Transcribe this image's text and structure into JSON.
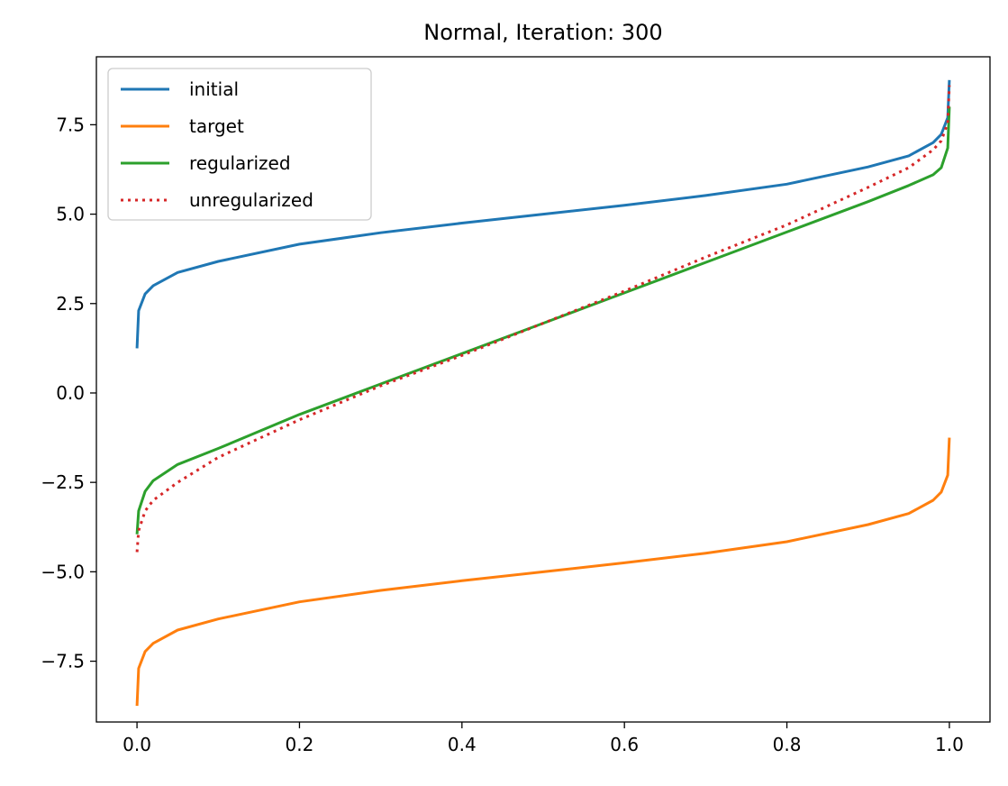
{
  "chart_data": {
    "type": "line",
    "title": "Normal, Iteration: 300",
    "xlabel": "",
    "ylabel": "",
    "xlim": [
      -0.05,
      1.05
    ],
    "ylim": [
      -9.2,
      9.4
    ],
    "grid": false,
    "legend_position": "top-left",
    "x_ticks": [
      0.0,
      0.2,
      0.4,
      0.6,
      0.8,
      1.0
    ],
    "x_tick_labels": [
      "0.0",
      "0.2",
      "0.4",
      "0.6",
      "0.8",
      "1.0"
    ],
    "y_ticks": [
      -7.5,
      -5.0,
      -2.5,
      0.0,
      2.5,
      5.0,
      7.5
    ],
    "y_tick_labels": [
      "−7.5",
      "−5.0",
      "−2.5",
      "0.0",
      "2.5",
      "5.0",
      "7.5"
    ],
    "x": [
      0.0,
      0.002,
      0.01,
      0.02,
      0.05,
      0.1,
      0.2,
      0.3,
      0.4,
      0.5,
      0.6,
      0.7,
      0.8,
      0.9,
      0.95,
      0.98,
      0.99,
      0.998,
      1.0
    ],
    "series": [
      {
        "name": "initial",
        "color": "#1f77b4",
        "style": "solid",
        "values": [
          1.25,
          2.3,
          2.77,
          3.0,
          3.37,
          3.68,
          4.16,
          4.48,
          4.75,
          5.0,
          5.25,
          5.52,
          5.84,
          6.32,
          6.63,
          7.0,
          7.23,
          7.7,
          8.75
        ]
      },
      {
        "name": "target",
        "color": "#ff7f0e",
        "style": "solid",
        "values": [
          -8.75,
          -7.7,
          -7.23,
          -7.0,
          -6.63,
          -6.32,
          -5.84,
          -5.52,
          -5.25,
          -5.0,
          -4.75,
          -4.48,
          -4.16,
          -3.68,
          -3.37,
          -3.0,
          -2.77,
          -2.3,
          -1.25
        ]
      },
      {
        "name": "regularized",
        "color": "#2ca02c",
        "style": "solid",
        "values": [
          -3.95,
          -3.3,
          -2.75,
          -2.45,
          -2.0,
          -1.55,
          -0.6,
          0.25,
          1.1,
          1.95,
          2.8,
          3.65,
          4.5,
          5.35,
          5.8,
          6.1,
          6.3,
          6.85,
          8.0
        ]
      },
      {
        "name": "unregularized",
        "color": "#d62728",
        "style": "dotted",
        "values": [
          -4.45,
          -3.85,
          -3.3,
          -3.0,
          -2.5,
          -1.8,
          -0.75,
          0.2,
          1.05,
          1.95,
          2.85,
          3.8,
          4.7,
          5.75,
          6.3,
          6.8,
          7.05,
          7.55,
          8.6
        ]
      }
    ]
  }
}
